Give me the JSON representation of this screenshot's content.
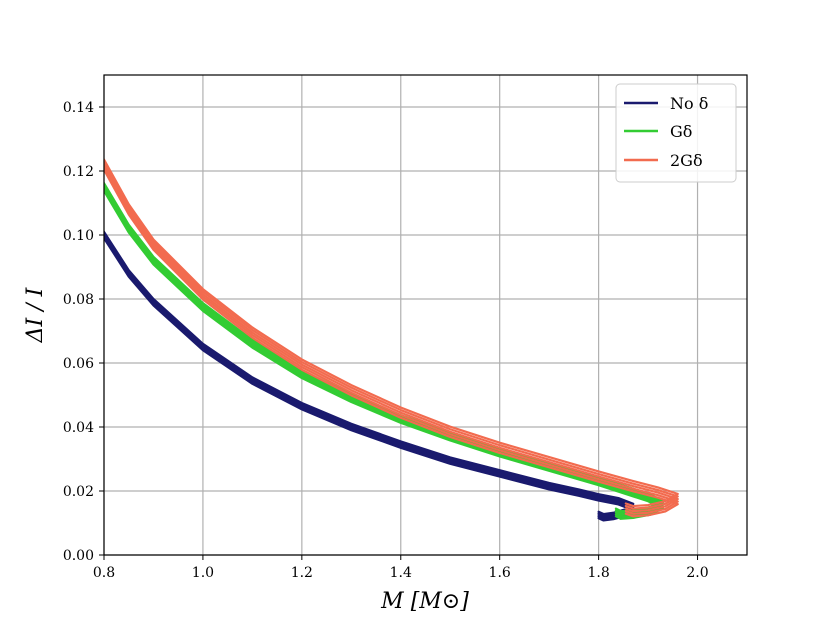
{
  "chart_data": {
    "type": "line",
    "xlabel": "M [M⊙]",
    "ylabel": "ΔI / I",
    "xlim": [
      0.8,
      2.1
    ],
    "ylim": [
      0.0,
      0.15
    ],
    "xticks": [
      "0.8",
      "1.0",
      "1.2",
      "1.4",
      "1.6",
      "1.8",
      "2.0"
    ],
    "yticks": [
      "0.00",
      "0.02",
      "0.04",
      "0.06",
      "0.08",
      "0.10",
      "0.12",
      "0.14"
    ],
    "grid": true,
    "legend_position": "top-right",
    "series": [
      {
        "name": "No δ",
        "color": "#1a1a6e",
        "band": 0.001,
        "x": [
          0.8,
          0.85,
          0.9,
          1.0,
          1.1,
          1.2,
          1.3,
          1.4,
          1.5,
          1.6,
          1.7,
          1.76,
          1.8,
          1.84,
          1.87,
          1.855,
          1.83,
          1.81,
          1.8
        ],
        "y": [
          0.1,
          0.088,
          0.079,
          0.065,
          0.0545,
          0.0465,
          0.04,
          0.0345,
          0.0295,
          0.0255,
          0.0215,
          0.0195,
          0.018,
          0.0168,
          0.015,
          0.0133,
          0.0122,
          0.0118,
          0.0125
        ]
      },
      {
        "name": "Gδ",
        "color": "#33cc33",
        "band": 0.0012,
        "x": [
          0.8,
          0.85,
          0.9,
          1.0,
          1.1,
          1.2,
          1.3,
          1.4,
          1.5,
          1.6,
          1.7,
          1.8,
          1.86,
          1.9,
          1.93,
          1.905,
          1.87,
          1.845,
          1.835
        ],
        "y": [
          0.115,
          0.102,
          0.092,
          0.0775,
          0.066,
          0.0565,
          0.049,
          0.0425,
          0.037,
          0.032,
          0.0275,
          0.023,
          0.02,
          0.018,
          0.0158,
          0.0138,
          0.0128,
          0.0125,
          0.0133
        ]
      },
      {
        "name": "2Gδ",
        "color": "#f26b4f",
        "band": 0.0016,
        "x": [
          0.8,
          0.85,
          0.9,
          1.0,
          1.1,
          1.2,
          1.3,
          1.4,
          1.5,
          1.6,
          1.7,
          1.8,
          1.87,
          1.92,
          1.96,
          1.935,
          1.9,
          1.87,
          1.855
        ],
        "y": [
          0.122,
          0.108,
          0.097,
          0.0815,
          0.0695,
          0.0595,
          0.0515,
          0.0445,
          0.0385,
          0.0335,
          0.029,
          0.0245,
          0.0215,
          0.0195,
          0.0175,
          0.0152,
          0.014,
          0.0137,
          0.0145
        ]
      }
    ]
  }
}
